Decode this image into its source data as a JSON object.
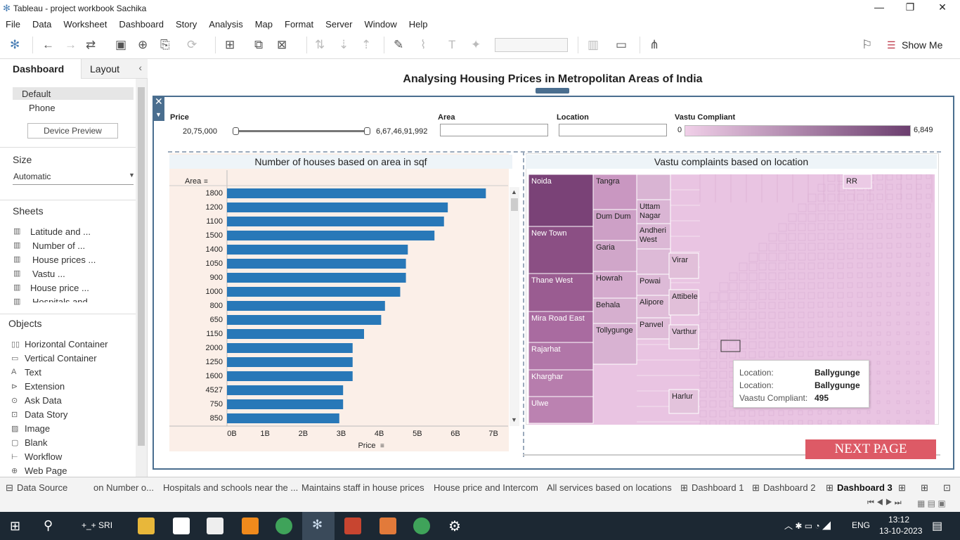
{
  "window": {
    "title": "Tableau - project workbook Sachika"
  },
  "menu": [
    "File",
    "Data",
    "Worksheet",
    "Dashboard",
    "Story",
    "Analysis",
    "Map",
    "Format",
    "Server",
    "Window",
    "Help"
  ],
  "toolbar": {
    "show_me": "Show Me"
  },
  "left": {
    "tab_dashboard": "Dashboard",
    "tab_layout": "Layout",
    "device_default": "Default",
    "device_phone": "Phone",
    "device_preview": "Device Preview",
    "size_title": "Size",
    "size_value": "Automatic",
    "sheets_title": "Sheets",
    "sheets": [
      "Latitude and ...",
      "Number of ...",
      "House prices ...",
      "Vastu ...",
      "House price ...",
      "Hospitals and"
    ],
    "objects_title": "Objects",
    "objects": [
      "Horizontal Container",
      "Vertical Container",
      "Text",
      "Extension",
      "Ask Data",
      "Data Story",
      "Image",
      "Blank",
      "Workflow",
      "Web Page"
    ]
  },
  "dashboard": {
    "title": "Analysing Housing Prices in Metropolitan Areas of India",
    "filters": {
      "price_label": "Price",
      "price_min": "20,75,000",
      "price_max": "6,67,46,91,992",
      "area_label": "Area",
      "location_label": "Location",
      "vastu_label": "Vastu Compliant",
      "vastu_min": "0",
      "vastu_max": "6,849",
      "vastu_colors": [
        "#f0cfe8",
        "#6c3f6f"
      ]
    },
    "next_button": "NEXT PAGE"
  },
  "chart_data": [
    {
      "type": "bar",
      "title": "Number of houses based on area in sqf",
      "ylabel": "Area",
      "xlabel": "Price",
      "categories": [
        "1800",
        "1200",
        "1100",
        "1500",
        "1400",
        "1050",
        "900",
        "1000",
        "800",
        "650",
        "1150",
        "2000",
        "1250",
        "1600",
        "4527",
        "750",
        "850"
      ],
      "values": [
        6.8,
        5.8,
        5.7,
        5.45,
        4.75,
        4.7,
        4.7,
        4.55,
        4.15,
        4.05,
        3.6,
        3.3,
        3.3,
        3.3,
        3.05,
        3.05,
        2.95
      ],
      "xticks": [
        "0B",
        "1B",
        "2B",
        "3B",
        "4B",
        "5B",
        "6B",
        "7B"
      ],
      "xlim": [
        0,
        7.2
      ],
      "color": "#2878b8",
      "grid": false
    },
    {
      "type": "treemap",
      "title": "Vastu complaints based on location",
      "labels": [
        "Noida",
        "New Town",
        "Thane West",
        "Mira Road East",
        "Rajarhat",
        "Kharghar",
        "Ulwe",
        "Tangra",
        "Dum Dum",
        "Garia",
        "Howrah",
        "Behala",
        "Tollygunge",
        "Uttam Nagar",
        "Andheri West",
        "Powai",
        "Alipore",
        "Panvel",
        "Virar",
        "Attibele",
        "Varthur",
        "Harlur",
        "RR"
      ],
      "tooltip": {
        "k1": "Location:",
        "v1": "Ballygunge",
        "k2": "Location:",
        "v2": "Ballygunge",
        "k3": "Vaastu Compliant:",
        "v3": "495"
      }
    }
  ],
  "sheet_tabs": [
    "Data Source",
    "on Number o...",
    "Hospitals and schools near the ...",
    "Maintains staff in house prices",
    "House price and Intercom",
    "All services based on locations",
    "Dashboard 1",
    "Dashboard 2",
    "Dashboard 3"
  ],
  "taskbar": {
    "user": "+_+ SRI",
    "lang": "ENG",
    "time": "13:12",
    "date": "13-10-2023"
  }
}
